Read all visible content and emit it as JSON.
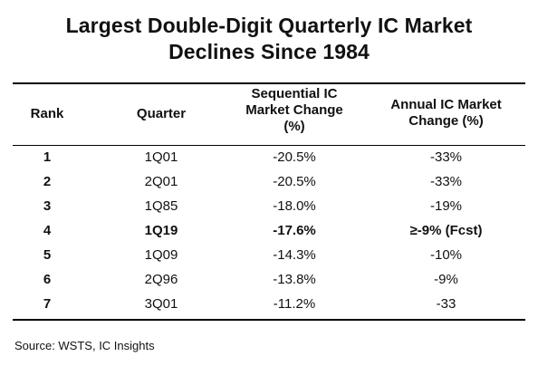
{
  "chart_data": {
    "type": "table",
    "title": [
      "Largest Double-Digit Quarterly IC Market",
      "Declines Since 1984"
    ],
    "columns": [
      {
        "key": "rank",
        "label": [
          "Rank"
        ]
      },
      {
        "key": "quarter",
        "label": [
          "Quarter"
        ]
      },
      {
        "key": "sequential",
        "label": [
          "Sequential IC",
          "Market Change",
          "(%)"
        ]
      },
      {
        "key": "annual",
        "label": [
          "Annual IC Market",
          "Change (%)"
        ]
      }
    ],
    "rows": [
      {
        "rank": "1",
        "quarter": "1Q01",
        "sequential": "-20.5%",
        "annual": "-33%",
        "highlight": false
      },
      {
        "rank": "2",
        "quarter": "2Q01",
        "sequential": "-20.5%",
        "annual": "-33%",
        "highlight": false
      },
      {
        "rank": "3",
        "quarter": "1Q85",
        "sequential": "-18.0%",
        "annual": "-19%",
        "highlight": false
      },
      {
        "rank": "4",
        "quarter": "1Q19",
        "sequential": "-17.6%",
        "annual": "≥-9% (Fcst)",
        "highlight": true
      },
      {
        "rank": "5",
        "quarter": "1Q09",
        "sequential": "-14.3%",
        "annual": "-10%",
        "highlight": false
      },
      {
        "rank": "6",
        "quarter": "2Q96",
        "sequential": "-13.8%",
        "annual": "-9%",
        "highlight": false
      },
      {
        "rank": "7",
        "quarter": "3Q01",
        "sequential": "-11.2%",
        "annual": "-33",
        "highlight": false
      }
    ],
    "source": "Source: WSTS, IC Insights"
  }
}
